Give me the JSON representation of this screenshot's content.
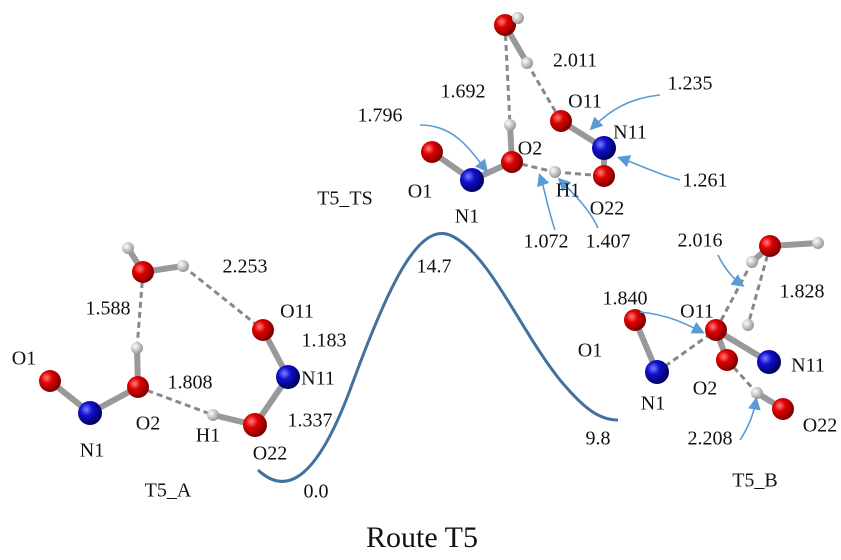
{
  "title": "Route T5",
  "structures": [
    {
      "name": "T5_A",
      "atoms": [
        "O1",
        "N1",
        "O2",
        "H1",
        "O22",
        "N11",
        "O11"
      ],
      "distances": [
        "2.253",
        "1.588",
        "1.808",
        "1.183",
        "1.337"
      ]
    },
    {
      "name": "T5_TS",
      "atoms": [
        "O1",
        "N1",
        "O2",
        "H1",
        "O22",
        "N11",
        "O11"
      ],
      "distances": [
        "1.692",
        "2.011",
        "1.235",
        "1.796",
        "1.261",
        "1.072",
        "1.407"
      ]
    },
    {
      "name": "T5_B",
      "atoms": [
        "O1",
        "N1",
        "O11",
        "O2",
        "N11",
        "O22"
      ],
      "distances": [
        "2.016",
        "1.840",
        "1.828",
        "2.208"
      ]
    }
  ],
  "energies": [
    "0.0",
    "14.7",
    "9.8"
  ]
}
